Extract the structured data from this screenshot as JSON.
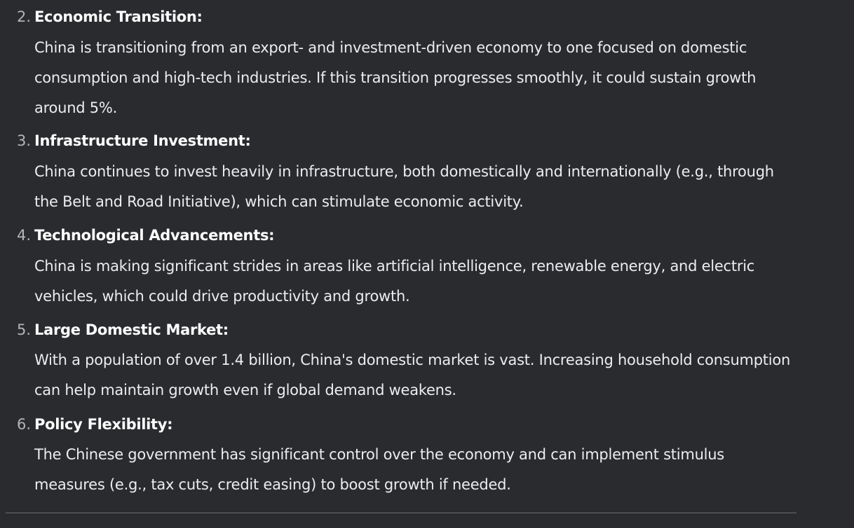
{
  "items": [
    {
      "number": "2.",
      "heading": "Economic Transition:",
      "text": "China is transitioning from an export- and investment-driven economy to one focused on domestic consumption and high-tech industries. If this transition progresses smoothly, it could sustain growth around 5%."
    },
    {
      "number": "3.",
      "heading": "Infrastructure Investment:",
      "text": "China continues to invest heavily in infrastructure, both domestically and internationally (e.g., through the Belt and Road Initiative), which can stimulate economic activity."
    },
    {
      "number": "4.",
      "heading": "Technological Advancements:",
      "text": "China is making significant strides in areas like artificial intelligence, renewable energy, and electric vehicles, which could drive productivity and growth."
    },
    {
      "number": "5.",
      "heading": "Large Domestic Market:",
      "text": "With a population of over 1.4 billion, China's domestic market is vast. Increasing household consumption can help maintain growth even if global demand weakens."
    },
    {
      "number": "6.",
      "heading": "Policy Flexibility:",
      "text": "The Chinese government has significant control over the economy and can implement stimulus measures (e.g., tax cuts, credit easing) to boost growth if needed."
    }
  ]
}
